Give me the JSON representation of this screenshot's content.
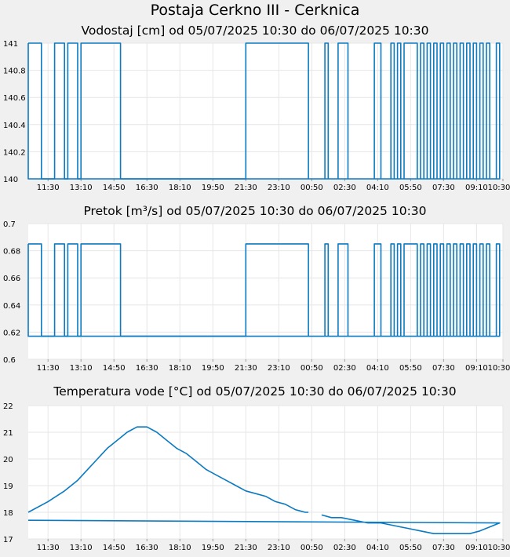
{
  "page_title": "Postaja Cerkno III - Cerknica",
  "colors": {
    "line": "#0a7ac2",
    "plot_bg": "#ffffff",
    "page_bg": "#f0f0f0",
    "grid": "#e6e6e6"
  },
  "chart_data": [
    {
      "type": "line",
      "title": "Vodostaj [cm] od 05/07/2025 10:30 do 06/07/2025 10:30",
      "xlabel": "",
      "ylabel": "",
      "ylim": [
        140,
        141
      ],
      "yticks": [
        "140",
        "140.2",
        "140.4",
        "140.6",
        "140.8",
        "141"
      ],
      "xticks": [
        "11:30",
        "13:10",
        "14:50",
        "16:30",
        "18:10",
        "19:50",
        "21:30",
        "23:10",
        "00:50",
        "02:30",
        "04:10",
        "05:50",
        "07:30",
        "09:10",
        "10:30"
      ],
      "grid": true,
      "series": [
        {
          "segments": [
            {
              "x": [
                "10:30",
                "11:00",
                "11:10",
                "11:40",
                "11:50",
                "12:20",
                "12:30",
                "13:00",
                "13:10",
                "15:00",
                "15:10",
                "21:20",
                "21:30",
                "00:40"
              ],
              "y": [
                141,
                141,
                140,
                140,
                141,
                140,
                141,
                140,
                141,
                141,
                140,
                140,
                141,
                140
              ]
            },
            {
              "x": [
                "01:20",
                "01:30",
                "01:40",
                "02:00",
                "02:10",
                "02:40",
                "02:50",
                "03:50",
                "04:00",
                "04:20",
                "04:30",
                "04:50",
                "05:00",
                "05:10",
                "05:20",
                "05:30",
                "05:40",
                "05:50",
                "06:10",
                "06:20",
                "06:30",
                "06:40",
                "06:50",
                "07:00",
                "07:10",
                "07:20",
                "07:30",
                "07:40",
                "07:50",
                "08:00",
                "08:10",
                "08:20",
                "08:30",
                "08:40",
                "08:50",
                "09:00",
                "09:10",
                "09:20",
                "09:30",
                "09:40",
                "09:50",
                "10:00",
                "10:10",
                "10:20",
                "10:30"
              ],
              "y": [
                140,
                141,
                140,
                140,
                141,
                140,
                140,
                140,
                141,
                140,
                140,
                141,
                140,
                141,
                140,
                141,
                141,
                141,
                140,
                141,
                140,
                141,
                140,
                141,
                140,
                141,
                140,
                141,
                140,
                141,
                140,
                141,
                140,
                141,
                140,
                141,
                140,
                141,
                140,
                141,
                140,
                140,
                141,
                140,
                141
              ]
            }
          ]
        }
      ]
    },
    {
      "type": "line",
      "title": "Pretok [m³/s] od 05/07/2025 10:30 do 06/07/2025 10:30",
      "xlabel": "",
      "ylabel": "",
      "ylim": [
        0.6,
        0.7
      ],
      "yticks": [
        "0.6",
        "0.62",
        "0.64",
        "0.66",
        "0.68",
        "0.7"
      ],
      "xticks": [
        "11:30",
        "13:10",
        "14:50",
        "16:30",
        "18:10",
        "19:50",
        "21:30",
        "23:10",
        "00:50",
        "02:30",
        "04:10",
        "05:50",
        "07:30",
        "09:10",
        "10:30"
      ],
      "grid": true,
      "series": [
        {
          "segments": [
            {
              "x": [
                "10:30",
                "11:00",
                "11:10",
                "11:40",
                "11:50",
                "12:20",
                "12:30",
                "13:00",
                "13:10",
                "15:00",
                "15:10",
                "21:20",
                "21:30",
                "00:40"
              ],
              "y": [
                0.685,
                0.685,
                0.617,
                0.617,
                0.685,
                0.617,
                0.685,
                0.617,
                0.685,
                0.685,
                0.617,
                0.617,
                0.685,
                0.617
              ]
            },
            {
              "x": [
                "01:20",
                "01:30",
                "01:40",
                "02:00",
                "02:10",
                "02:40",
                "02:50",
                "03:50",
                "04:00",
                "04:20",
                "04:30",
                "04:50",
                "05:00",
                "05:10",
                "05:20",
                "05:30",
                "05:40",
                "05:50",
                "06:10",
                "06:20",
                "06:30",
                "06:40",
                "06:50",
                "07:00",
                "07:10",
                "07:20",
                "07:30",
                "07:40",
                "07:50",
                "08:00",
                "08:10",
                "08:20",
                "08:30",
                "08:40",
                "08:50",
                "09:00",
                "09:10",
                "09:20",
                "09:30",
                "09:40",
                "09:50",
                "10:00",
                "10:10",
                "10:20",
                "10:30"
              ],
              "y": [
                0.617,
                0.685,
                0.617,
                0.617,
                0.685,
                0.617,
                0.617,
                0.617,
                0.685,
                0.617,
                0.617,
                0.685,
                0.617,
                0.685,
                0.617,
                0.685,
                0.685,
                0.685,
                0.617,
                0.685,
                0.617,
                0.685,
                0.617,
                0.685,
                0.617,
                0.685,
                0.617,
                0.685,
                0.617,
                0.685,
                0.617,
                0.685,
                0.617,
                0.685,
                0.617,
                0.685,
                0.617,
                0.685,
                0.617,
                0.685,
                0.617,
                0.617,
                0.685,
                0.617,
                0.685
              ]
            }
          ]
        }
      ]
    },
    {
      "type": "line",
      "title": "Temperatura vode [°C] od 05/07/2025 10:30 do 06/07/2025 10:30",
      "xlabel": "",
      "ylabel": "",
      "ylim": [
        17,
        22
      ],
      "yticks": [
        "17",
        "18",
        "19",
        "20",
        "21",
        "22"
      ],
      "xticks": [
        "11:30",
        "13:10",
        "14:50",
        "16:30",
        "18:10",
        "19:50",
        "21:30",
        "23:10",
        "00:50",
        "02:30",
        "04:10",
        "05:50",
        "07:30",
        "09:10",
        "10:30"
      ],
      "grid": true,
      "series": [
        {
          "segments": [
            {
              "x": [
                "10:30",
                "11:30",
                "12:20",
                "13:00",
                "13:30",
                "14:00",
                "14:30",
                "15:00",
                "15:30",
                "16:00",
                "16:30",
                "17:00",
                "17:30",
                "18:00",
                "18:30",
                "19:00",
                "19:30",
                "20:00",
                "20:30",
                "21:00",
                "21:30",
                "22:00",
                "22:30",
                "23:00",
                "23:30",
                "00:00",
                "00:30",
                "00:40"
              ],
              "y": [
                18.0,
                18.4,
                18.8,
                19.2,
                19.6,
                20.0,
                20.4,
                20.7,
                21.0,
                21.2,
                21.2,
                21.0,
                20.7,
                20.4,
                20.2,
                19.9,
                19.6,
                19.4,
                19.2,
                19.0,
                18.8,
                18.7,
                18.6,
                18.4,
                18.3,
                18.1,
                18.0,
                18.0
              ]
            },
            {
              "x": [
                "01:20",
                "01:50",
                "02:20",
                "03:00",
                "03:40",
                "04:20",
                "05:00",
                "05:40",
                "06:20",
                "07:00",
                "07:30",
                "07:50",
                "08:20",
                "08:50",
                "09:20",
                "09:40",
                "10:00",
                "10:20",
                "10:30"
              ],
              "y": [
                17.9,
                17.8,
                17.8,
                17.7,
                17.6,
                17.6,
                17.5,
                17.4,
                17.3,
                17.2,
                17.2,
                17.2,
                17.2,
                17.2,
                17.3,
                17.4,
                17.5,
                17.6,
                17.7
              ]
            }
          ]
        }
      ]
    }
  ]
}
